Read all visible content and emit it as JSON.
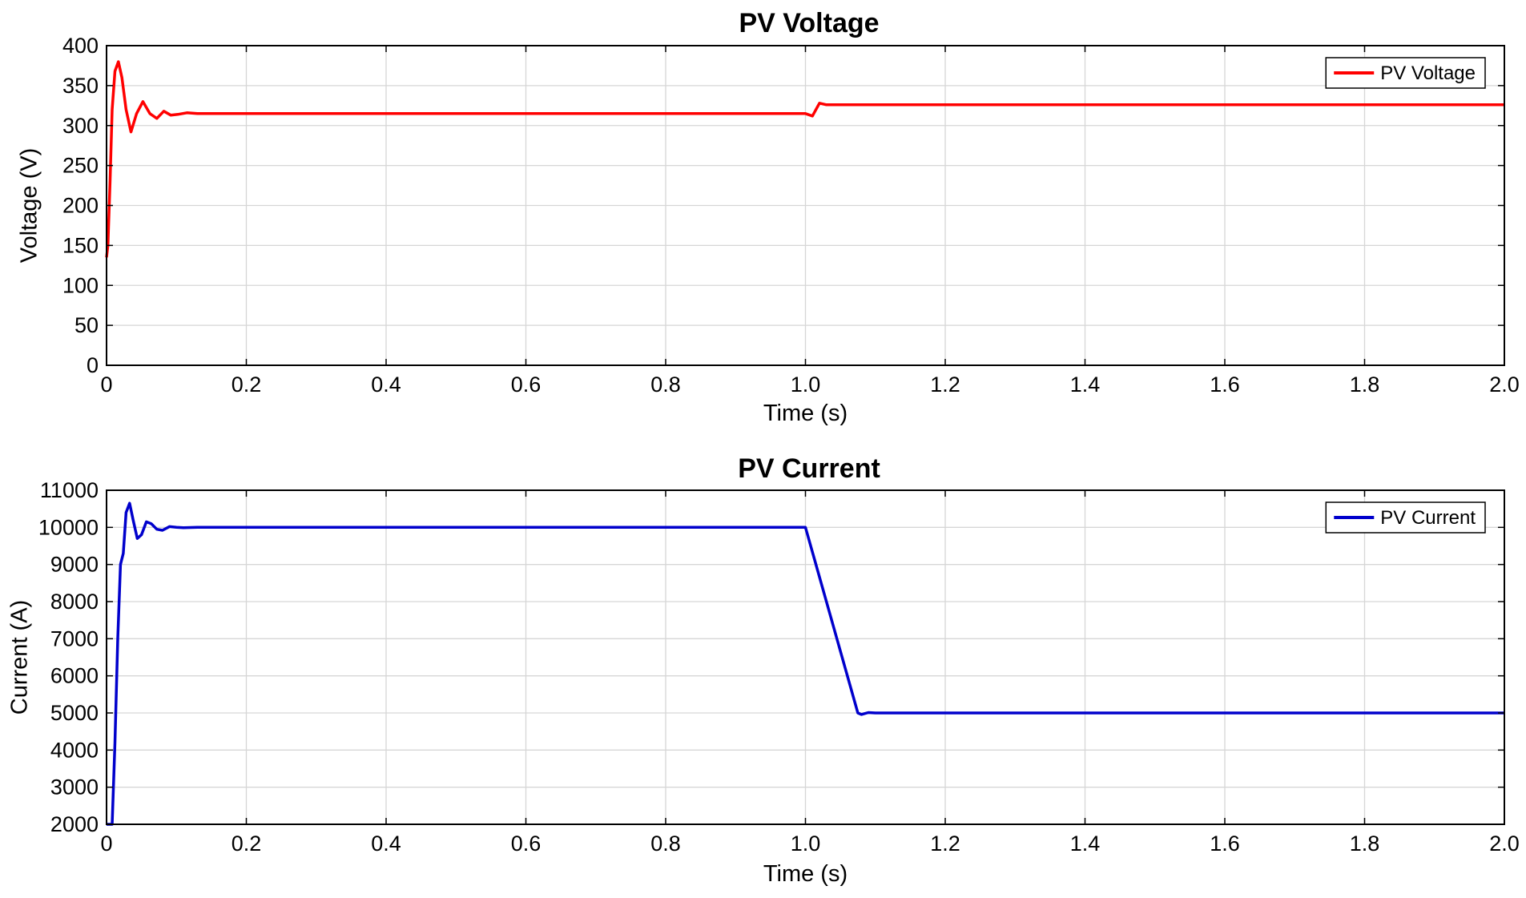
{
  "chart_data": [
    {
      "type": "line",
      "title": "PV Voltage",
      "xlabel": "Time (s)",
      "ylabel": "Voltage (V)",
      "xlim": [
        0,
        2.0
      ],
      "ylim": [
        0,
        400
      ],
      "xticks": [
        0,
        0.2,
        0.4,
        0.6,
        0.8,
        1.0,
        1.2,
        1.4,
        1.6,
        1.8,
        2.0
      ],
      "xtick_labels": [
        "0",
        "0.2",
        "0.4",
        "0.6",
        "0.8",
        "1.0",
        "1.2",
        "1.4",
        "1.6",
        "1.8",
        "2.0"
      ],
      "yticks": [
        0,
        50,
        100,
        150,
        200,
        250,
        300,
        350,
        400
      ],
      "ytick_labels": [
        "0",
        "50",
        "100",
        "150",
        "200",
        "250",
        "300",
        "350",
        "400"
      ],
      "grid": true,
      "legend": "top-right",
      "series": [
        {
          "name": "PV Voltage",
          "color": "#ff0000",
          "x": [
            0,
            0.002,
            0.005,
            0.008,
            0.012,
            0.017,
            0.022,
            0.028,
            0.035,
            0.043,
            0.052,
            0.062,
            0.072,
            0.082,
            0.092,
            0.102,
            0.115,
            0.13,
            0.16,
            0.2,
            1.0,
            1.01,
            1.02,
            1.03,
            2.0
          ],
          "y": [
            135,
            150,
            230,
            320,
            368,
            380,
            360,
            320,
            292,
            315,
            330,
            315,
            309,
            318,
            313,
            314,
            316,
            315,
            315,
            315,
            315,
            312,
            328,
            326,
            326
          ]
        }
      ]
    },
    {
      "type": "line",
      "title": "PV Current",
      "xlabel": "Time (s)",
      "ylabel": "Current (A)",
      "xlim": [
        0,
        2.0
      ],
      "ylim": [
        2000,
        11000
      ],
      "xticks": [
        0,
        0.2,
        0.4,
        0.6,
        0.8,
        1.0,
        1.2,
        1.4,
        1.6,
        1.8,
        2.0
      ],
      "xtick_labels": [
        "0",
        "0.2",
        "0.4",
        "0.6",
        "0.8",
        "1.0",
        "1.2",
        "1.4",
        "1.6",
        "1.8",
        "2.0"
      ],
      "yticks": [
        2000,
        3000,
        4000,
        5000,
        6000,
        7000,
        8000,
        9000,
        10000,
        11000
      ],
      "ytick_labels": [
        "2000",
        "3000",
        "4000",
        "5000",
        "6000",
        "7000",
        "8000",
        "9000",
        "10000",
        "11000"
      ],
      "grid": true,
      "legend": "top-right",
      "series": [
        {
          "name": "PV Current",
          "color": "#0000cc",
          "x": [
            0,
            0.008,
            0.012,
            0.016,
            0.02,
            0.024,
            0.028,
            0.033,
            0.038,
            0.044,
            0.05,
            0.057,
            0.064,
            0.072,
            0.08,
            0.09,
            0.1,
            0.11,
            0.13,
            0.16,
            0.2,
            1.0,
            1.075,
            1.08,
            1.09,
            1.1,
            2.0
          ],
          "y": [
            2000,
            2000,
            4200,
            7000,
            9000,
            9300,
            10400,
            10650,
            10200,
            9700,
            9800,
            10150,
            10100,
            9950,
            9920,
            10020,
            10000,
            9990,
            10000,
            10000,
            10000,
            10000,
            5000,
            4960,
            5010,
            5000,
            5000
          ]
        }
      ]
    }
  ]
}
